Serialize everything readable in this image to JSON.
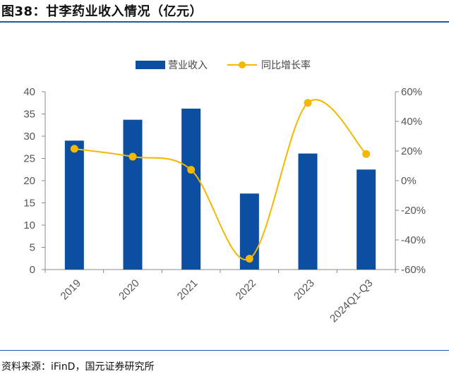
{
  "title": "图38：甘李药业收入情况（亿元）",
  "source": "资料来源：iFinD，国元证券研究所",
  "colors": {
    "bar": "#0b4ea2",
    "line": "#f5b800",
    "axis": "#888888",
    "rule": "#1f5aa8"
  },
  "chart_data": {
    "type": "bar+line",
    "categories": [
      "2019",
      "2020",
      "2021",
      "2022",
      "2023",
      "2024Q1-Q3"
    ],
    "series": [
      {
        "name": "营业收入",
        "type": "bar",
        "axis": "left",
        "values": [
          29.0,
          33.7,
          36.2,
          17.1,
          26.1,
          22.5
        ]
      },
      {
        "name": "同比增长率",
        "type": "line",
        "axis": "right",
        "values": [
          21.5,
          16.2,
          7.3,
          -52.7,
          52.5,
          18.0
        ]
      }
    ],
    "ylim_left": [
      0,
      40
    ],
    "yticks_left": [
      "0",
      "5",
      "10",
      "15",
      "20",
      "25",
      "30",
      "35",
      "40"
    ],
    "ylim_right": [
      -60,
      60
    ],
    "yticks_right": [
      "-60%",
      "-40%",
      "-20%",
      "0%",
      "20%",
      "40%",
      "60%"
    ],
    "legend_position": "top-center",
    "grid": false
  }
}
